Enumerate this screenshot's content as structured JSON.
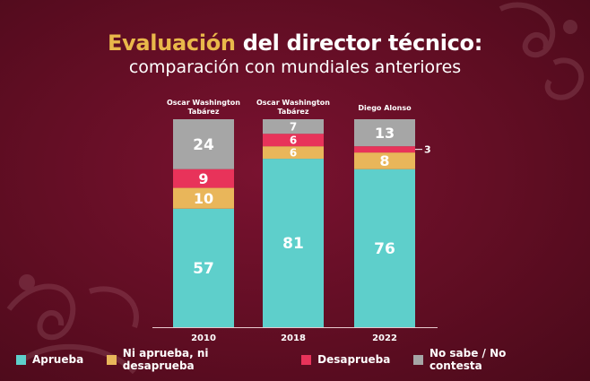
{
  "header": {
    "title_accent": "Evaluación",
    "title_rest": " del director técnico:",
    "subtitle": "comparación con mundiales anteriores"
  },
  "colors": {
    "Aprueba": "#5ecfcb",
    "Ni aprueba, ni desaprueba": "#e9b65a",
    "Desaprueba": "#e8335a",
    "No sabe / No contesta": "#a6a6a6",
    "accent": "#e9b84a",
    "background": "#5e0d22"
  },
  "chart_data": {
    "type": "bar",
    "stacked": true,
    "categories": [
      "2010",
      "2018",
      "2022"
    ],
    "coaches": [
      "Oscar  Washington\nTabárez",
      "Oscar  Washington\nTabárez",
      "Diego Alonso"
    ],
    "series": [
      {
        "name": "Aprueba",
        "values": [
          57,
          81,
          76
        ]
      },
      {
        "name": "Ni aprueba, ni desaprueba",
        "values": [
          10,
          6,
          8
        ]
      },
      {
        "name": "Desaprueba",
        "values": [
          9,
          6,
          3
        ]
      },
      {
        "name": "No sabe / No contesta",
        "values": [
          24,
          7,
          13
        ]
      }
    ],
    "ylim": [
      0,
      100
    ],
    "grid": false,
    "legend_position": "bottom"
  }
}
